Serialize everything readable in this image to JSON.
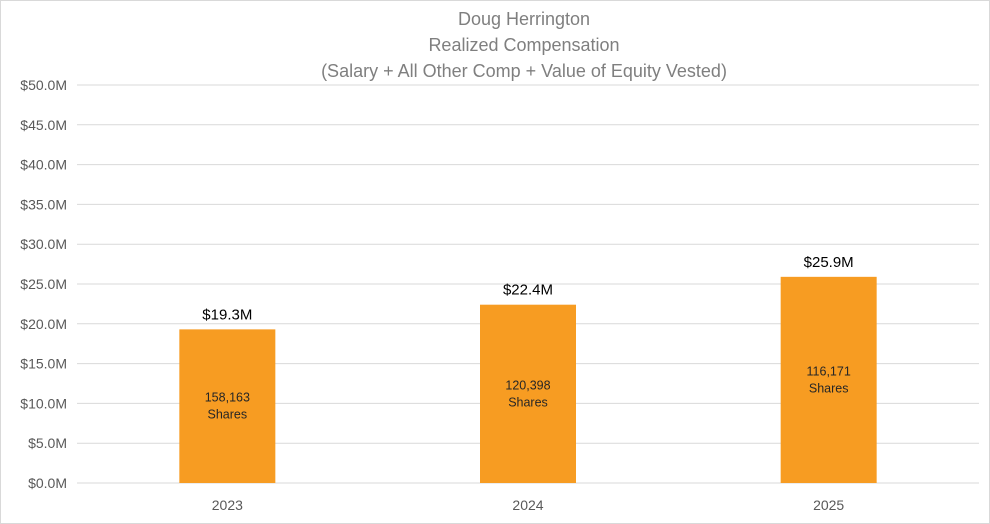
{
  "chart_data": {
    "type": "bar",
    "title_lines": [
      "Doug Herrington",
      "Realized Compensation",
      "(Salary + All Other Comp + Value of Equity Vested)"
    ],
    "categories": [
      "2023",
      "2024",
      "2025"
    ],
    "values": [
      19.3,
      22.4,
      25.9
    ],
    "value_labels": [
      "$19.3M",
      "$22.4M",
      "$25.9M"
    ],
    "inner_labels": [
      [
        "158,163",
        "Shares"
      ],
      [
        "120,398",
        "Shares"
      ],
      [
        "116,171",
        "Shares"
      ]
    ],
    "ylim": [
      0,
      50
    ],
    "yticks": [
      0,
      5,
      10,
      15,
      20,
      25,
      30,
      35,
      40,
      45,
      50
    ],
    "ytick_labels": [
      "$0.0M",
      "$5.0M",
      "$10.0M",
      "$15.0M",
      "$20.0M",
      "$25.0M",
      "$30.0M",
      "$35.0M",
      "$40.0M",
      "$45.0M",
      "$50.0M"
    ],
    "bar_color": "#f79c22",
    "grid": true,
    "legend": "none"
  }
}
